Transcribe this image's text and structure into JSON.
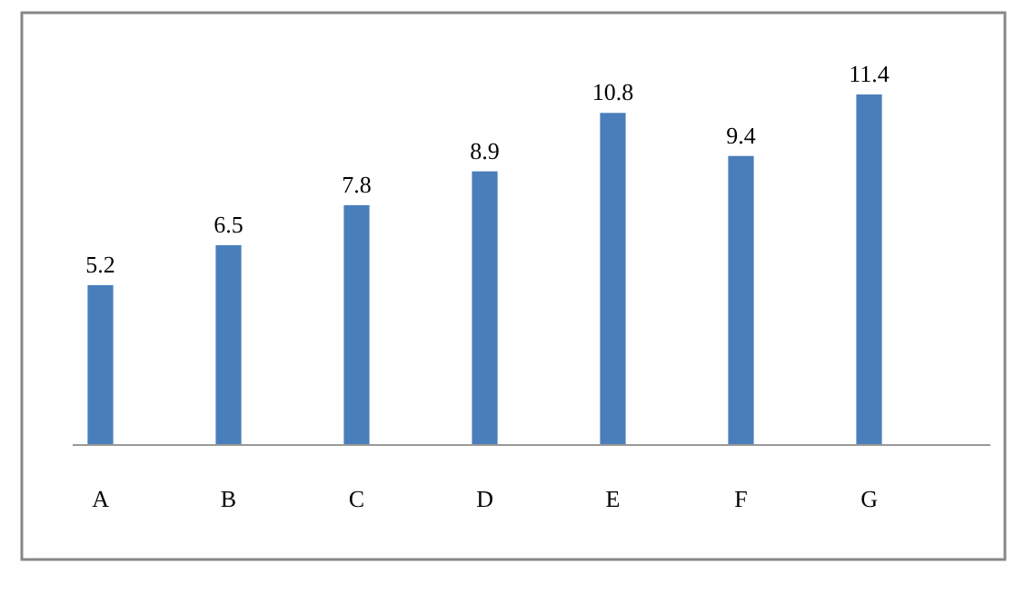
{
  "chart_data": {
    "type": "bar",
    "categories": [
      "A",
      "B",
      "C",
      "D",
      "E",
      "F",
      "G"
    ],
    "values": [
      5.2,
      6.5,
      7.8,
      8.9,
      10.8,
      9.4,
      11.4
    ],
    "color": "#4a7ebb",
    "data_labels": true
  }
}
